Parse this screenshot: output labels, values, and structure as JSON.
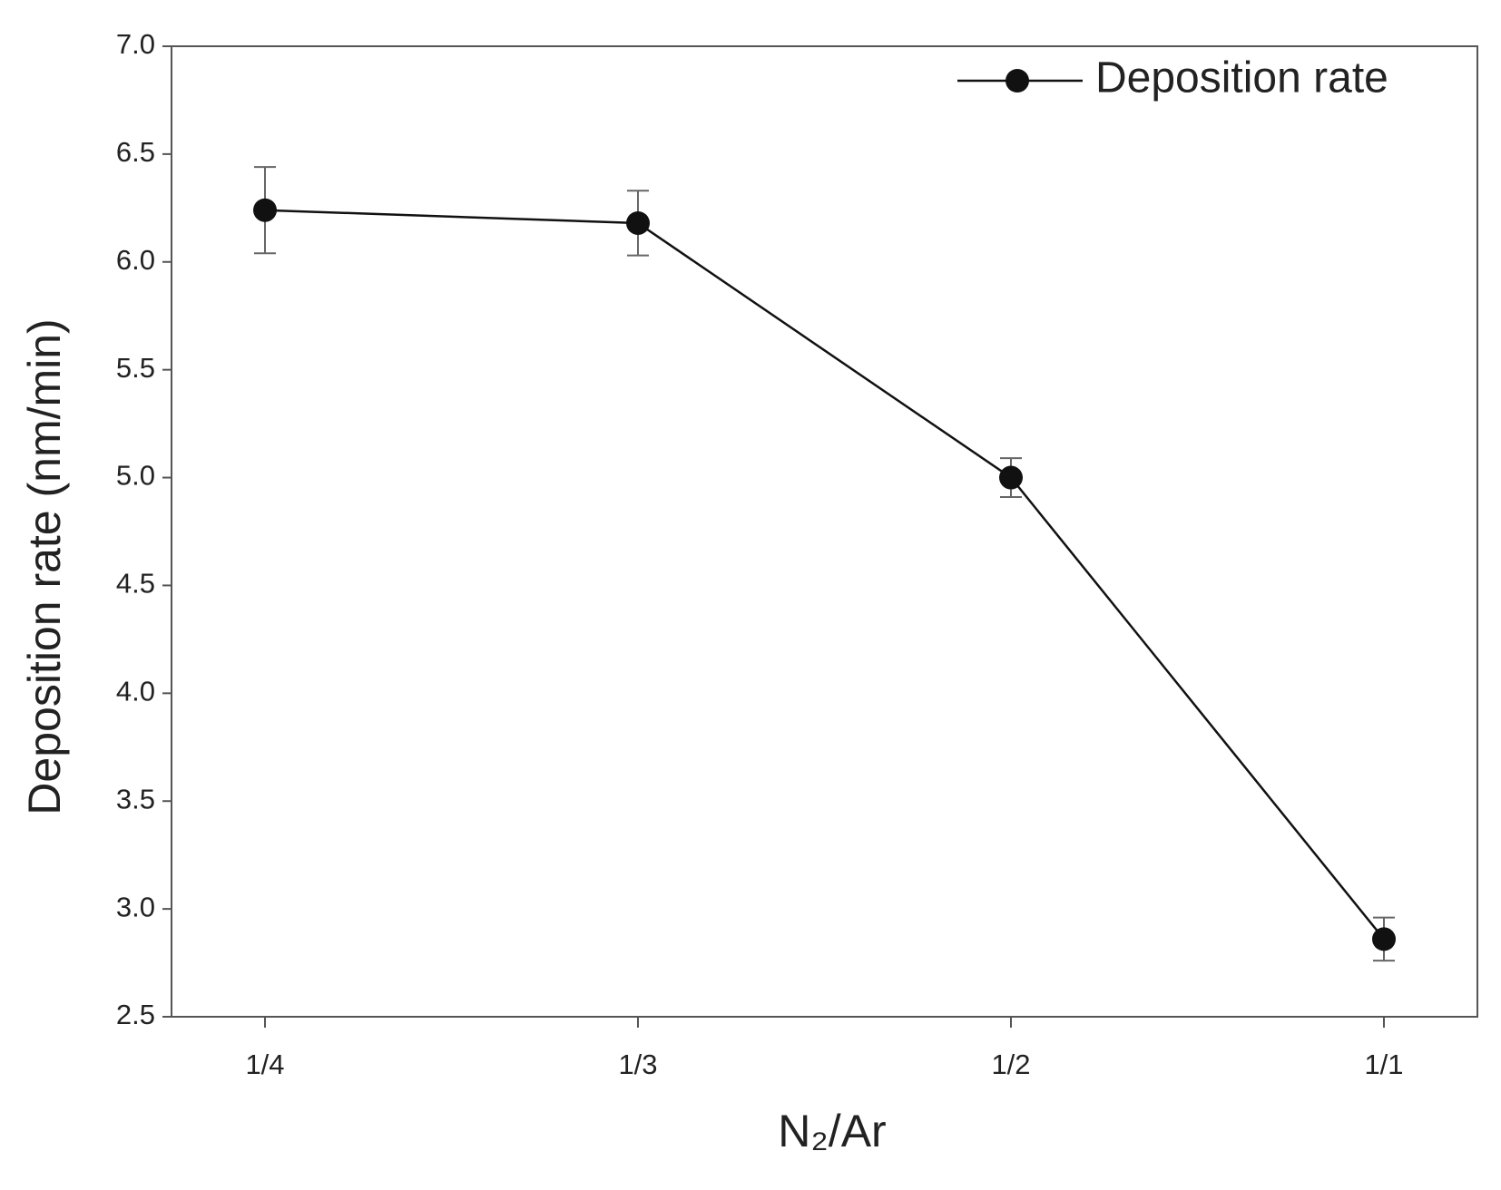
{
  "chart_data": {
    "type": "line",
    "x_label": "N₂/Ar",
    "y_label": "Deposition rate  (nm/min)",
    "categories": [
      "1/4",
      "1/3",
      "1/2",
      "1/1"
    ],
    "series": [
      {
        "name": "Deposition rate",
        "color": "#111111",
        "values": [
          6.24,
          6.18,
          5.0,
          2.86
        ],
        "errors": [
          0.2,
          0.15,
          0.09,
          0.1
        ]
      }
    ],
    "ylim": [
      2.5,
      7.0
    ],
    "yticks": [
      2.5,
      {
        "value": 3.0,
        "label": "3.0"
      },
      3.5,
      {
        "value": 4.0,
        "label": "4.0"
      },
      4.5,
      {
        "value": 5.0,
        "label": "5.0"
      },
      5.5,
      {
        "value": 6.0,
        "label": "6.0"
      },
      6.5,
      {
        "value": 7.0,
        "label": "7.0"
      }
    ],
    "grid": false,
    "legend": "upper right"
  }
}
